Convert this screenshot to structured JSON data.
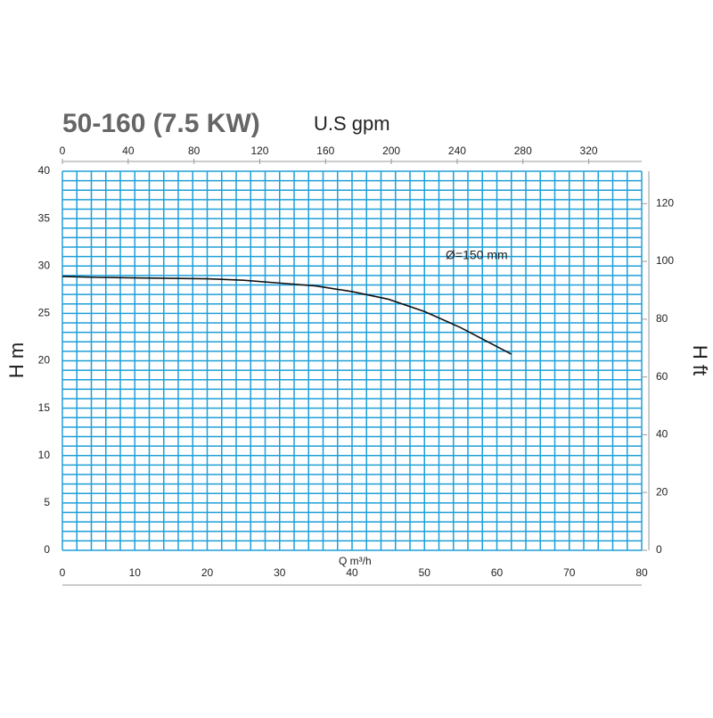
{
  "chart_data": {
    "type": "line",
    "title": "50-160 (7.5 KW)",
    "x2label": "U.S gpm",
    "ylabel": "H m",
    "y2label": "H ft",
    "xlabel": "Q m³/h",
    "annotation": "Ø=150 mm",
    "x": [
      0,
      5,
      10,
      15,
      20,
      25,
      30,
      35,
      40,
      45,
      50,
      55,
      62
    ],
    "series": [
      {
        "name": "Ø=150 mm",
        "color": "#111111",
        "values": [
          28.9,
          28.8,
          28.75,
          28.7,
          28.65,
          28.5,
          28.2,
          27.9,
          27.3,
          26.5,
          25.2,
          23.5,
          20.7
        ]
      }
    ],
    "xlim": [
      0,
      80
    ],
    "xticks": [
      0,
      10,
      20,
      30,
      40,
      50,
      60,
      70,
      80
    ],
    "x2lim": [
      0,
      352.2
    ],
    "x2ticks": [
      0,
      40,
      80,
      120,
      160,
      200,
      240,
      280,
      320
    ],
    "ylim": [
      0,
      40
    ],
    "yticks": [
      0,
      5,
      10,
      15,
      20,
      25,
      30,
      35,
      40
    ],
    "y2lim": [
      0,
      131.2
    ],
    "y2ticks": [
      0,
      20,
      40,
      60,
      80,
      100,
      120
    ],
    "grid": true,
    "grid_color": "#1e9fd8"
  }
}
